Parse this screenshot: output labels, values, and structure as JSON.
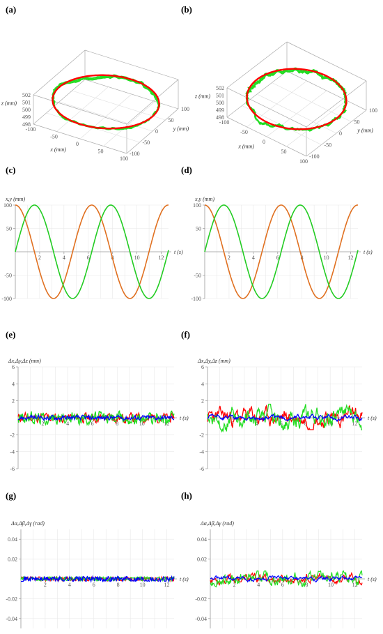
{
  "panels": {
    "a": {
      "label": "(a)"
    },
    "b": {
      "label": "(b)"
    },
    "c": {
      "label": "(c)"
    },
    "d": {
      "label": "(d)"
    },
    "e": {
      "label": "(e)"
    },
    "f": {
      "label": "(f)"
    },
    "g": {
      "label": "(g)"
    },
    "h": {
      "label": "(h)"
    }
  },
  "chart_data": [
    {
      "panel": "a",
      "type": "line3d",
      "xlabel": "x (mm)",
      "ylabel": "y (mm)",
      "zlabel": "z (mm)",
      "x_ticks": [
        -100,
        -50,
        0,
        50,
        100
      ],
      "y_ticks": [
        -100,
        -50,
        0,
        50,
        100
      ],
      "z_ticks": [
        498,
        499,
        500,
        501,
        502
      ],
      "xlim": [
        -100,
        100
      ],
      "ylim": [
        -100,
        100
      ],
      "zlim": [
        498,
        502
      ],
      "series": [
        {
          "color": "#ff0000",
          "description": "reference circle radius 100 at z=500"
        },
        {
          "color": "#22dd22",
          "description": "measured trajectory"
        }
      ]
    },
    {
      "panel": "b",
      "type": "line3d",
      "xlabel": "x (mm)",
      "ylabel": "y (mm)",
      "zlabel": "z (mm)",
      "x_ticks": [
        -100,
        -50,
        0,
        50,
        100
      ],
      "y_ticks": [
        -100,
        -50,
        0,
        50,
        100
      ],
      "z_ticks": [
        498,
        499,
        500,
        501,
        502
      ],
      "xlim": [
        -100,
        100
      ],
      "ylim": [
        -100,
        100
      ],
      "zlim": [
        498,
        502
      ],
      "series": [
        {
          "color": "#ff0000",
          "description": "reference circle radius 100 at z=500"
        },
        {
          "color": "#22dd22",
          "description": "measured trajectory"
        }
      ]
    },
    {
      "panel": "c",
      "type": "line",
      "ylabel": "x,y (mm)",
      "xlabel": "t (s)",
      "xlim": [
        0,
        12.6
      ],
      "ylim": [
        -100,
        100
      ],
      "x_ticks": [
        2,
        4,
        6,
        8,
        10,
        12
      ],
      "y_ticks": [
        -100,
        -50,
        50,
        100
      ],
      "series": [
        {
          "color": "#e07020",
          "function": "100*cos(t)",
          "amplitude": 100
        },
        {
          "color": "#22cc22",
          "function": "100*sin(t)",
          "amplitude": 100
        }
      ]
    },
    {
      "panel": "d",
      "type": "line",
      "ylabel": "x,y (mm)",
      "xlabel": "t (s)",
      "xlim": [
        0,
        12.6
      ],
      "ylim": [
        -100,
        100
      ],
      "x_ticks": [
        2,
        4,
        6,
        8,
        10,
        12
      ],
      "y_ticks": [
        -100,
        -50,
        50,
        100
      ],
      "series": [
        {
          "color": "#e07020",
          "function": "100*cos(t)",
          "amplitude": 100
        },
        {
          "color": "#22cc22",
          "function": "100*sin(t)",
          "amplitude": 100
        }
      ]
    },
    {
      "panel": "e",
      "type": "line",
      "ylabel": "Δx,Δy,Δz (mm)",
      "xlabel": "t (s)",
      "xlim": [
        0,
        12.6
      ],
      "ylim": [
        -6,
        6
      ],
      "x_ticks": [
        2,
        4,
        6,
        8,
        10,
        12
      ],
      "y_ticks": [
        -6,
        -4,
        -2,
        2,
        4,
        6
      ],
      "series": [
        {
          "color": "#ff0000",
          "amplitude": 0.6
        },
        {
          "color": "#22dd22",
          "amplitude": 0.8
        },
        {
          "color": "#0000ff",
          "amplitude": 0.3
        }
      ]
    },
    {
      "panel": "f",
      "type": "line",
      "ylabel": "Δx,Δy,Δz (mm)",
      "xlabel": "t (s)",
      "xlim": [
        0,
        12.6
      ],
      "ylim": [
        -6,
        6
      ],
      "x_ticks": [
        2,
        4,
        6,
        8,
        10,
        12
      ],
      "y_ticks": [
        -6,
        -4,
        -2,
        2,
        4,
        6
      ],
      "series": [
        {
          "color": "#ff0000",
          "amplitude": 1.4
        },
        {
          "color": "#22dd22",
          "amplitude": 1.6
        },
        {
          "color": "#0000ff",
          "amplitude": 0.4
        }
      ]
    },
    {
      "panel": "g",
      "type": "line",
      "ylabel": "Δα,Δβ,Δγ (rad)",
      "xlabel": "t (s)",
      "xlim": [
        0,
        12.6
      ],
      "ylim": [
        -0.05,
        0.05
      ],
      "x_ticks": [
        2,
        4,
        6,
        8,
        10,
        12
      ],
      "y_ticks": [
        -0.04,
        -0.02,
        0.02,
        0.04
      ],
      "series": [
        {
          "color": "#ff0000",
          "amplitude": 0.002
        },
        {
          "color": "#22dd22",
          "amplitude": 0.002
        },
        {
          "color": "#0000ff",
          "amplitude": 0.0025
        }
      ]
    },
    {
      "panel": "h",
      "type": "line",
      "ylabel": "Δα,Δβ,Δγ (rad)",
      "xlabel": "t (s)",
      "xlim": [
        0,
        12.6
      ],
      "ylim": [
        -0.05,
        0.05
      ],
      "x_ticks": [
        2,
        4,
        6,
        8,
        10,
        12
      ],
      "y_ticks": [
        -0.04,
        -0.02,
        0.02,
        0.04
      ],
      "series": [
        {
          "color": "#ff0000",
          "amplitude": 0.006
        },
        {
          "color": "#22dd22",
          "amplitude": 0.008
        },
        {
          "color": "#0000ff",
          "amplitude": 0.003
        }
      ]
    }
  ]
}
